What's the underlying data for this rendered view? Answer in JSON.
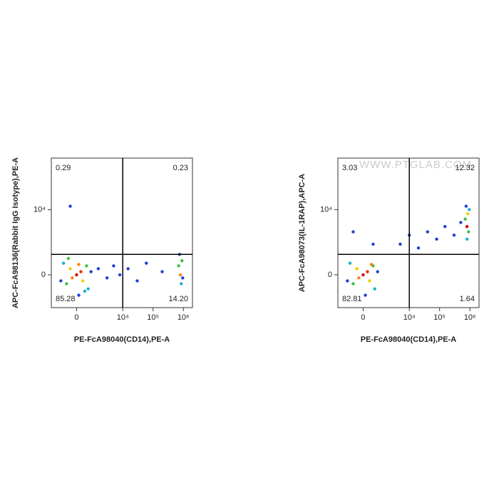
{
  "chart_data": [
    {
      "type": "scatter",
      "x_label": "PE-FcA98040(CD14),PE-A",
      "y_label": "APC-FcA98136(Rabbit IgG Isotype),PE-A",
      "scale": "biexponential",
      "xlim": [
        -2000,
        2000000
      ],
      "ylim": [
        -1700,
        160000
      ],
      "xticks": [
        0,
        {
          "value": 10000,
          "label": "10⁴"
        },
        {
          "value": 100000,
          "label": "10⁵"
        },
        {
          "value": 1000000,
          "label": "10⁶"
        }
      ],
      "yticks": [
        0,
        {
          "value": 10000,
          "label": "10⁴"
        }
      ],
      "gate": {
        "x": 10000,
        "y": 800
      },
      "quadrant_labels": [
        "0.29",
        "0.23",
        "85.28",
        "14.20"
      ],
      "x": [
        0,
        200,
        -200,
        300,
        -300,
        500,
        -500,
        600,
        -700,
        800,
        -900,
        100,
        1500,
        3000,
        5000,
        8000,
        15000,
        30000,
        60000,
        200000,
        700000,
        800000,
        900000,
        850000,
        750000,
        950000,
        -300,
        400,
        -400,
        100
      ],
      "y": [
        0,
        100,
        -100,
        -200,
        200,
        300,
        -300,
        -500,
        400,
        100,
        -200,
        -800,
        200,
        -100,
        300,
        0,
        200,
        -200,
        400,
        100,
        300,
        0,
        500,
        -300,
        800,
        -100,
        12000,
        -600,
        600,
        350
      ],
      "colors": [
        "#d40000",
        "#e83000",
        "#ff8000",
        "#f0d000",
        "#f0d000",
        "#40c040",
        "#40c040",
        "#20b0d0",
        "#20b0d0",
        "#2040d0",
        "#2040d0",
        "#2040d0",
        "#2040d0",
        "#2040d0",
        "#2040d0",
        "#2040d0",
        "#2040d0",
        "#2040d0",
        "#2040d0",
        "#2040d0",
        "#40c040",
        "#ff8000",
        "#40c040",
        "#20b0d0",
        "#2040d0",
        "#2040d0",
        "#2040d0",
        "#20b0d0",
        "#40c040",
        "#ff8000"
      ]
    },
    {
      "type": "scatter",
      "x_label": "PE-FcA98040(CD14),PE-A",
      "y_label": "APC-FcA98073(IL-1RAP),APC-A",
      "scale": "biexponential",
      "watermark": "WWW.PTGLAB.COM",
      "xlim": [
        -2000,
        2000000
      ],
      "ylim": [
        -1700,
        160000
      ],
      "xticks": [
        0,
        {
          "value": 10000,
          "label": "10⁴"
        },
        {
          "value": 100000,
          "label": "10⁵"
        },
        {
          "value": 1000000,
          "label": "10⁶"
        }
      ],
      "yticks": [
        0,
        {
          "value": 10000,
          "label": "10⁴"
        }
      ],
      "gate": {
        "x": 10000,
        "y": 800
      },
      "quadrant_labels": [
        "3.03",
        "12.32",
        "82.81",
        "1.64"
      ],
      "x": [
        0,
        200,
        -200,
        300,
        -300,
        500,
        -500,
        600,
        -700,
        800,
        -900,
        100,
        5000,
        10000,
        20000,
        40000,
        80000,
        150000,
        300000,
        500000,
        700000,
        800000,
        850000,
        900000,
        750000,
        950000,
        800000,
        -500,
        500,
        400
      ],
      "y": [
        0,
        100,
        -100,
        -200,
        200,
        300,
        -300,
        -500,
        400,
        100,
        -200,
        -800,
        1500,
        2500,
        1200,
        3000,
        2000,
        4000,
        2500,
        5000,
        6000,
        4000,
        8000,
        3000,
        12000,
        10000,
        2000,
        3000,
        1500,
        350
      ],
      "colors": [
        "#d40000",
        "#e83000",
        "#ff8000",
        "#f0d000",
        "#f0d000",
        "#40c040",
        "#40c040",
        "#20b0d0",
        "#20b0d0",
        "#2040d0",
        "#2040d0",
        "#2040d0",
        "#2040d0",
        "#2040d0",
        "#2040d0",
        "#2040d0",
        "#2040d0",
        "#2040d0",
        "#2040d0",
        "#2040d0",
        "#40c040",
        "#d40000",
        "#f0d000",
        "#40c040",
        "#2040d0",
        "#20b0d0",
        "#20b0d0",
        "#2040d0",
        "#2040d0",
        "#ff8000"
      ]
    }
  ]
}
